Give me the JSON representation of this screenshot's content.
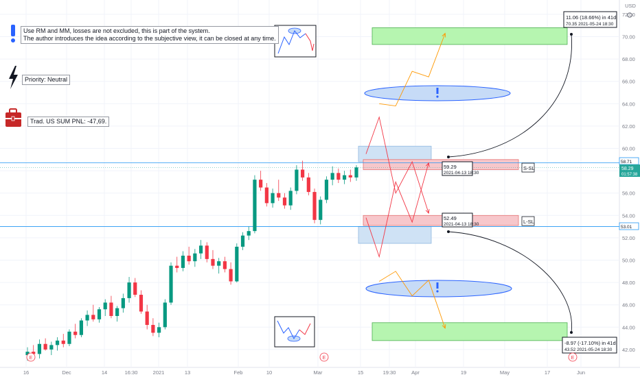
{
  "notes": {
    "info_line1": "Use RM and MM, losses are not excluded, this is part of the system.",
    "info_line2": "The author introduces the idea according to the subjective view, it can be closed at any time.",
    "priority": "Priority: Neutral",
    "pnl": "Trad. US SUM PNL: -47,69."
  },
  "labels": {
    "s_sl": "S-SL",
    "l_sl": "L-SL",
    "currency": "USD",
    "earnings": "E"
  },
  "callouts": {
    "upper_target": {
      "line1": "11.06 (18.66%) in 41d",
      "line2": "70.35   2021-05-24  18:30"
    },
    "lower_target": {
      "line1": "-8.97 (-17.10%) in 41d",
      "line2": "43.52   2021-05-24  18:30"
    },
    "upper_entry": {
      "line1": "59.29",
      "line2": "2021-04-13 18:30"
    },
    "lower_entry": {
      "line1": "52.49",
      "line2": "2021-04-13 18:30"
    }
  },
  "price_tags": {
    "upper_line": "58.71",
    "current": "58.29",
    "countdown": "01:57:38",
    "lower_line": "53.01"
  },
  "colors": {
    "bull": "#089981",
    "bear": "#f23645",
    "stop_zone": "#f7c7cb",
    "target_zone": "#b6f5b0",
    "entry_zone": "#cfe2f5",
    "ellipse": "#c6dbf7",
    "info_icon": "#2962ff",
    "pnl_icon": "#c62828",
    "h_line": "#2196f3"
  },
  "chart_data": {
    "type": "candlestick",
    "y_axis": {
      "range": [
        41,
        73
      ],
      "ticks": [
        42,
        44,
        46,
        48,
        50,
        52,
        54,
        56,
        58,
        60,
        62,
        64,
        66,
        68,
        70,
        72
      ]
    },
    "x_axis": {
      "ticks": [
        "16",
        "Dec",
        "14",
        "16:30",
        "2021",
        "13",
        "Feb",
        "10",
        "Mar",
        "15",
        "19:30",
        "Apr",
        "19",
        "May",
        "17",
        "Jun"
      ]
    },
    "levels": {
      "upper": 58.71,
      "lower": 53.01,
      "current": 58.29
    },
    "zones": {
      "short_stop": [
        58.1,
        59.0
      ],
      "long_stop": [
        53.1,
        54.0
      ],
      "upper_target": [
        69.3,
        70.8
      ],
      "lower_target": [
        42.8,
        44.4
      ],
      "upper_entry": [
        58.8,
        60.2
      ],
      "lower_entry": [
        51.5,
        53.0
      ]
    },
    "ohlc": [
      [
        41.5,
        42.2,
        41.0,
        41.8
      ],
      [
        41.8,
        42.4,
        41.4,
        41.6
      ],
      [
        41.6,
        42.9,
        41.2,
        42.5
      ],
      [
        42.5,
        43.0,
        41.9,
        42.0
      ],
      [
        42.0,
        42.7,
        41.5,
        42.4
      ],
      [
        42.4,
        43.1,
        41.9,
        42.8
      ],
      [
        42.8,
        43.4,
        42.2,
        42.5
      ],
      [
        42.5,
        43.8,
        42.3,
        43.6
      ],
      [
        43.6,
        44.3,
        43.0,
        43.3
      ],
      [
        43.3,
        44.8,
        43.1,
        44.6
      ],
      [
        44.6,
        45.5,
        44.1,
        45.1
      ],
      [
        45.1,
        46.0,
        44.5,
        44.7
      ],
      [
        44.7,
        45.8,
        44.4,
        45.6
      ],
      [
        45.6,
        46.5,
        45.0,
        46.2
      ],
      [
        46.2,
        46.8,
        44.8,
        45.0
      ],
      [
        45.0,
        45.9,
        44.5,
        45.7
      ],
      [
        45.7,
        47.0,
        45.3,
        46.6
      ],
      [
        46.6,
        48.5,
        46.2,
        48.0
      ],
      [
        48.0,
        48.4,
        46.7,
        46.9
      ],
      [
        46.9,
        47.3,
        45.2,
        45.4
      ],
      [
        45.4,
        46.0,
        43.8,
        44.2
      ],
      [
        44.2,
        44.8,
        43.2,
        43.5
      ],
      [
        43.5,
        44.4,
        43.1,
        44.0
      ],
      [
        44.0,
        46.5,
        43.8,
        46.2
      ],
      [
        46.2,
        49.8,
        46.0,
        49.5
      ],
      [
        49.5,
        50.3,
        48.9,
        49.3
      ],
      [
        49.3,
        50.8,
        49.0,
        50.4
      ],
      [
        50.4,
        51.2,
        49.6,
        49.9
      ],
      [
        49.9,
        51.0,
        49.4,
        50.6
      ],
      [
        50.6,
        51.8,
        50.1,
        51.3
      ],
      [
        51.3,
        51.6,
        49.8,
        50.1
      ],
      [
        50.1,
        50.9,
        49.2,
        49.5
      ],
      [
        49.5,
        50.2,
        48.8,
        49.9
      ],
      [
        49.9,
        50.3,
        48.9,
        49.2
      ],
      [
        49.2,
        49.8,
        47.8,
        48.1
      ],
      [
        48.1,
        51.5,
        48.0,
        51.2
      ],
      [
        51.2,
        52.5,
        50.9,
        52.2
      ],
      [
        52.2,
        53.0,
        51.8,
        52.6
      ],
      [
        52.6,
        57.6,
        52.4,
        57.2
      ],
      [
        57.2,
        58.0,
        56.2,
        56.5
      ],
      [
        56.5,
        56.9,
        54.8,
        55.1
      ],
      [
        55.1,
        56.4,
        54.7,
        56.0
      ],
      [
        56.0,
        57.2,
        55.3,
        55.6
      ],
      [
        55.6,
        56.0,
        54.6,
        54.9
      ],
      [
        54.9,
        56.5,
        54.5,
        56.2
      ],
      [
        56.2,
        58.5,
        55.9,
        58.1
      ],
      [
        58.1,
        58.9,
        57.1,
        57.4
      ],
      [
        57.4,
        57.8,
        55.8,
        56.1
      ],
      [
        56.1,
        56.4,
        53.3,
        53.6
      ],
      [
        53.6,
        55.7,
        53.2,
        55.4
      ],
      [
        55.4,
        57.5,
        55.1,
        57.2
      ],
      [
        57.2,
        58.4,
        56.7,
        57.8
      ],
      [
        57.8,
        58.2,
        56.9,
        57.2
      ],
      [
        57.2,
        58.0,
        56.8,
        57.6
      ],
      [
        57.6,
        58.1,
        57.0,
        57.4
      ],
      [
        57.4,
        58.5,
        57.1,
        58.3
      ]
    ],
    "projection_up_red": [
      [
        59.5,
        0
      ],
      [
        62.8,
        4
      ],
      [
        56.0,
        9
      ],
      [
        58.8,
        14
      ],
      [
        54.2,
        19
      ]
    ],
    "projection_up_orange": [
      [
        64.0,
        4
      ],
      [
        63.8,
        9
      ],
      [
        66.9,
        14
      ],
      [
        66.4,
        19
      ],
      [
        70.3,
        24
      ]
    ],
    "projection_down_red": [
      [
        53.8,
        0
      ],
      [
        50.3,
        4
      ],
      [
        57.0,
        9
      ],
      [
        53.4,
        14
      ],
      [
        58.7,
        19
      ]
    ],
    "projection_down_orange": [
      [
        48.1,
        4
      ],
      [
        49.0,
        9
      ],
      [
        46.8,
        14
      ],
      [
        48.2,
        19
      ],
      [
        43.9,
        24
      ]
    ]
  }
}
